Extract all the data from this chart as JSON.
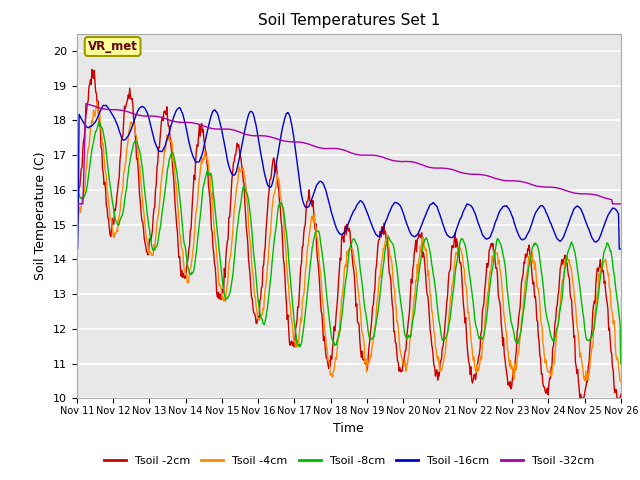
{
  "title": "Soil Temperatures Set 1",
  "xlabel": "Time",
  "ylabel": "Soil Temperature (C)",
  "ylim": [
    10.0,
    20.5
  ],
  "yticks": [
    10.0,
    11.0,
    12.0,
    13.0,
    14.0,
    15.0,
    16.0,
    17.0,
    18.0,
    19.0,
    20.0
  ],
  "xtick_labels": [
    "Nov 11",
    "Nov 12",
    "Nov 13",
    "Nov 14",
    "Nov 15",
    "Nov 16",
    "Nov 17",
    "Nov 18",
    "Nov 19",
    "Nov 20",
    "Nov 21",
    "Nov 22",
    "Nov 23",
    "Nov 24",
    "Nov 25",
    "Nov 26"
  ],
  "series_colors": [
    "#cc0000",
    "#ff8800",
    "#00bb00",
    "#0000cc",
    "#aa00aa"
  ],
  "series_names": [
    "Tsoil -2cm",
    "Tsoil -4cm",
    "Tsoil -8cm",
    "Tsoil -16cm",
    "Tsoil -32cm"
  ],
  "plot_bg_color": "#e8e8e8",
  "annotation_text": "VR_met",
  "annotation_bg": "#ffff99",
  "annotation_border": "#999900",
  "figsize": [
    6.4,
    4.8
  ],
  "dpi": 100
}
